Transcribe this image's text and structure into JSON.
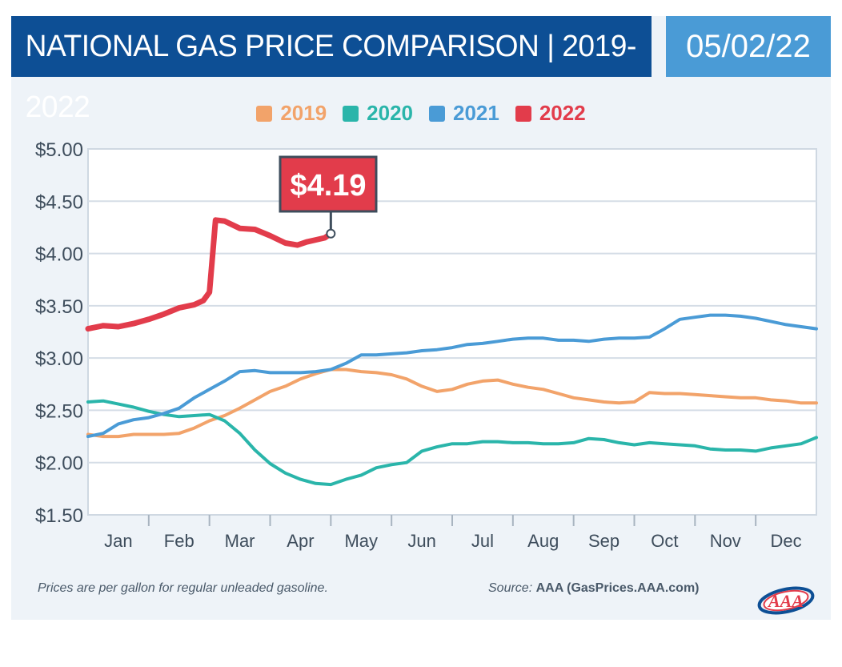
{
  "header": {
    "title": "NATIONAL GAS PRICE COMPARISON | 2019-2022",
    "date": "05/02/22"
  },
  "colors": {
    "title_bg": "#0d4f95",
    "date_bg": "#4a9bd6",
    "series_2019": "#f2a36a",
    "series_2020": "#2ab5aa",
    "series_2021": "#4a9bd6",
    "series_2022": "#e23c4b",
    "callout_bg": "#e23c4b"
  },
  "chart_data": {
    "type": "line",
    "title": "NATIONAL GAS PRICE COMPARISON | 2019-2022",
    "xlabel": "",
    "ylabel": "",
    "categories": [
      "Jan",
      "Feb",
      "Mar",
      "Apr",
      "May",
      "Jun",
      "Jul",
      "Aug",
      "Sep",
      "Oct",
      "Nov",
      "Dec"
    ],
    "y_tick_labels": [
      "$5.00",
      "$4.50",
      "$4.00",
      "$3.50",
      "$3.00",
      "$2.50",
      "$2.00",
      "$1.50"
    ],
    "ylim": [
      1.5,
      5.0
    ],
    "xlim": [
      0,
      12
    ],
    "grid": true,
    "legend": "top-center",
    "series": [
      {
        "name": "2019",
        "color": "#f2a36a",
        "x": [
          0,
          0.25,
          0.5,
          0.75,
          1,
          1.25,
          1.5,
          1.75,
          2,
          2.25,
          2.5,
          2.75,
          3,
          3.25,
          3.5,
          3.75,
          4,
          4.25,
          4.5,
          4.75,
          5,
          5.25,
          5.5,
          5.75,
          6,
          6.25,
          6.5,
          6.75,
          7,
          7.25,
          7.5,
          7.75,
          8,
          8.25,
          8.5,
          8.75,
          9,
          9.25,
          9.5,
          9.75,
          10,
          10.25,
          10.5,
          10.75,
          11,
          11.25,
          11.5,
          11.75,
          12
        ],
        "values": [
          2.27,
          2.25,
          2.25,
          2.27,
          2.27,
          2.27,
          2.28,
          2.33,
          2.4,
          2.45,
          2.52,
          2.6,
          2.68,
          2.73,
          2.8,
          2.85,
          2.89,
          2.89,
          2.87,
          2.86,
          2.84,
          2.8,
          2.73,
          2.68,
          2.7,
          2.75,
          2.78,
          2.79,
          2.75,
          2.72,
          2.7,
          2.66,
          2.62,
          2.6,
          2.58,
          2.57,
          2.58,
          2.67,
          2.66,
          2.66,
          2.65,
          2.64,
          2.63,
          2.62,
          2.62,
          2.6,
          2.59,
          2.57,
          2.57
        ]
      },
      {
        "name": "2020",
        "color": "#2ab5aa",
        "x": [
          0,
          0.25,
          0.5,
          0.75,
          1,
          1.25,
          1.5,
          1.75,
          2,
          2.25,
          2.5,
          2.75,
          3,
          3.25,
          3.5,
          3.75,
          4,
          4.25,
          4.5,
          4.75,
          5,
          5.25,
          5.5,
          5.75,
          6,
          6.25,
          6.5,
          6.75,
          7,
          7.25,
          7.5,
          7.75,
          8,
          8.25,
          8.5,
          8.75,
          9,
          9.25,
          9.5,
          9.75,
          10,
          10.25,
          10.5,
          10.75,
          11,
          11.25,
          11.5,
          11.75,
          12
        ],
        "values": [
          2.58,
          2.59,
          2.56,
          2.53,
          2.49,
          2.46,
          2.44,
          2.45,
          2.46,
          2.4,
          2.28,
          2.12,
          1.99,
          1.9,
          1.84,
          1.8,
          1.79,
          1.84,
          1.88,
          1.95,
          1.98,
          2.0,
          2.11,
          2.15,
          2.18,
          2.18,
          2.2,
          2.2,
          2.19,
          2.19,
          2.18,
          2.18,
          2.19,
          2.23,
          2.22,
          2.19,
          2.17,
          2.19,
          2.18,
          2.17,
          2.16,
          2.13,
          2.12,
          2.12,
          2.11,
          2.14,
          2.16,
          2.18,
          2.24
        ]
      },
      {
        "name": "2021",
        "color": "#4a9bd6",
        "x": [
          0,
          0.25,
          0.5,
          0.75,
          1,
          1.25,
          1.5,
          1.75,
          2,
          2.25,
          2.5,
          2.75,
          3,
          3.25,
          3.5,
          3.75,
          4,
          4.25,
          4.5,
          4.75,
          5,
          5.25,
          5.5,
          5.75,
          6,
          6.25,
          6.5,
          6.75,
          7,
          7.25,
          7.5,
          7.75,
          8,
          8.25,
          8.5,
          8.75,
          9,
          9.25,
          9.5,
          9.75,
          10,
          10.25,
          10.5,
          10.75,
          11,
          11.25,
          11.5,
          11.75,
          12
        ],
        "values": [
          2.25,
          2.28,
          2.37,
          2.41,
          2.43,
          2.47,
          2.52,
          2.62,
          2.7,
          2.78,
          2.87,
          2.88,
          2.86,
          2.86,
          2.86,
          2.87,
          2.89,
          2.95,
          3.03,
          3.03,
          3.04,
          3.05,
          3.07,
          3.08,
          3.1,
          3.13,
          3.14,
          3.16,
          3.18,
          3.19,
          3.19,
          3.17,
          3.17,
          3.16,
          3.18,
          3.19,
          3.19,
          3.2,
          3.28,
          3.37,
          3.39,
          3.41,
          3.41,
          3.4,
          3.38,
          3.35,
          3.32,
          3.3,
          3.28
        ]
      },
      {
        "name": "2022",
        "color": "#e23c4b",
        "x": [
          0,
          0.25,
          0.5,
          0.75,
          1,
          1.25,
          1.5,
          1.75,
          1.9,
          2.0,
          2.1,
          2.25,
          2.5,
          2.75,
          3.0,
          3.25,
          3.45,
          3.6,
          3.75,
          3.9,
          4.0
        ],
        "values": [
          3.28,
          3.31,
          3.3,
          3.33,
          3.37,
          3.42,
          3.48,
          3.51,
          3.55,
          3.63,
          4.32,
          4.31,
          4.24,
          4.23,
          4.17,
          4.1,
          4.08,
          4.11,
          4.13,
          4.15,
          4.19
        ]
      }
    ],
    "annotation": {
      "text": "$4.19",
      "x": 4.0,
      "y": 4.19
    }
  },
  "footer": {
    "note": "Prices are per gallon for regular unleaded gasoline.",
    "source_label": "Source:",
    "source_value": "AAA (GasPrices.AAA.com)",
    "logo_text": "AAA"
  }
}
